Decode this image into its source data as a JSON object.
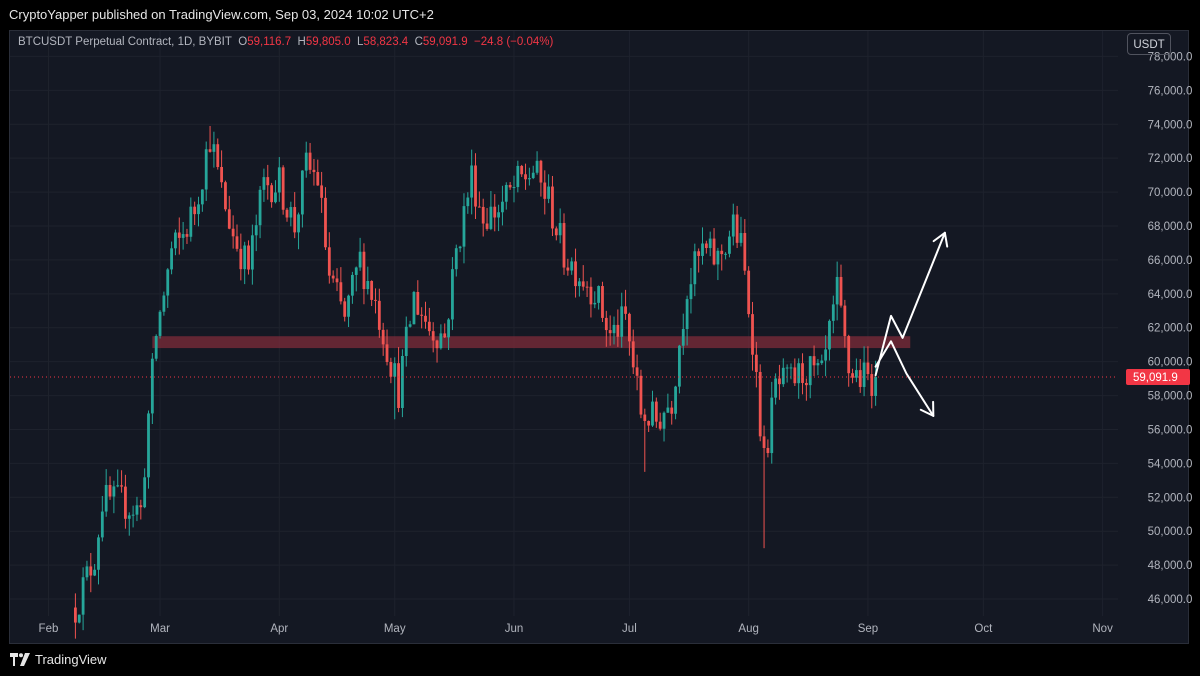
{
  "header": {
    "publisher_line": "CryptoYapper published on TradingView.com, Sep 03, 2024 10:02 UTC+2"
  },
  "legend": {
    "symbol": "BTCUSDT Perpetual Contract, 1D, BYBIT",
    "open_label": "O",
    "open": "59,116.7",
    "high_label": "H",
    "high": "59,805.0",
    "low_label": "L",
    "low": "58,823.4",
    "close_label": "C",
    "close": "59,091.9",
    "change": "−24.8 (−0.04%)"
  },
  "currency_button": "USDT",
  "footer": {
    "brand": "TradingView"
  },
  "colors": {
    "up": "#26a69a",
    "down": "#ef5350",
    "zone": "#7d2b3a",
    "price_label": "#f23645",
    "background": "#141823"
  },
  "chart_data": {
    "type": "candlestick",
    "symbol": "BTCUSDT",
    "interval": "1D",
    "ylim": [
      45000,
      79500
    ],
    "y_ticks": [
      46000,
      48000,
      50000,
      52000,
      54000,
      56000,
      58000,
      60000,
      62000,
      64000,
      66000,
      68000,
      70000,
      72000,
      74000,
      76000,
      78000
    ],
    "y_tick_labels": [
      "46,000.0",
      "48,000.0",
      "50,000.0",
      "52,000.0",
      "54,000.0",
      "56,000.0",
      "58,000.0",
      "60,000.0",
      "62,000.0",
      "64,000.0",
      "66,000.0",
      "68,000.0",
      "70,000.0",
      "72,000.0",
      "74,000.0",
      "76,000.0",
      "78,000.0"
    ],
    "x_range": [
      "2024-01-22",
      "2024-11-05"
    ],
    "x_ticks": [
      {
        "date": "2024-02-01",
        "label": "Feb"
      },
      {
        "date": "2024-03-01",
        "label": "Mar"
      },
      {
        "date": "2024-04-01",
        "label": "Apr"
      },
      {
        "date": "2024-05-01",
        "label": "May"
      },
      {
        "date": "2024-06-01",
        "label": "Jun"
      },
      {
        "date": "2024-07-01",
        "label": "Jul"
      },
      {
        "date": "2024-08-01",
        "label": "Aug"
      },
      {
        "date": "2024-09-01",
        "label": "Sep"
      },
      {
        "date": "2024-10-01",
        "label": "Oct"
      },
      {
        "date": "2024-11-01",
        "label": "Nov"
      }
    ],
    "start_date": "2024-02-08",
    "close_path": [
      [
        "2024-02-08",
        45500
      ],
      [
        "2024-02-13",
        48500
      ],
      [
        "2024-02-15",
        51800
      ],
      [
        "2024-02-20",
        51700
      ],
      [
        "2024-02-25",
        51200
      ],
      [
        "2024-02-27",
        56800
      ],
      [
        "2024-02-29",
        61600
      ],
      [
        "2024-03-04",
        66500
      ],
      [
        "2024-03-06",
        67000
      ],
      [
        "2024-03-10",
        69000
      ],
      [
        "2024-03-14",
        73300
      ],
      [
        "2024-03-17",
        70000
      ],
      [
        "2024-03-20",
        67500
      ],
      [
        "2024-03-24",
        65500
      ],
      [
        "2024-03-28",
        70500
      ],
      [
        "2024-04-01",
        70500
      ],
      [
        "2024-04-05",
        68000
      ],
      [
        "2024-04-08",
        71500
      ],
      [
        "2024-04-11",
        70800
      ],
      [
        "2024-04-14",
        65000
      ],
      [
        "2024-04-18",
        62500
      ],
      [
        "2024-04-22",
        66000
      ],
      [
        "2024-04-26",
        63500
      ],
      [
        "2024-04-30",
        60000
      ],
      [
        "2024-05-02",
        58300
      ],
      [
        "2024-05-06",
        63800
      ],
      [
        "2024-05-10",
        62000
      ],
      [
        "2024-05-14",
        61500
      ],
      [
        "2024-05-17",
        66500
      ],
      [
        "2024-05-21",
        71000
      ],
      [
        "2024-05-24",
        68500
      ],
      [
        "2024-05-28",
        69000
      ],
      [
        "2024-06-02",
        70500
      ],
      [
        "2024-06-06",
        71300
      ],
      [
        "2024-06-10",
        69500
      ],
      [
        "2024-06-14",
        66300
      ],
      [
        "2024-06-18",
        65200
      ],
      [
        "2024-06-22",
        64200
      ],
      [
        "2024-06-26",
        61500
      ],
      [
        "2024-06-30",
        62500
      ],
      [
        "2024-07-04",
        57000
      ],
      [
        "2024-07-08",
        56500
      ],
      [
        "2024-07-12",
        57800
      ],
      [
        "2024-07-16",
        64500
      ],
      [
        "2024-07-20",
        66500
      ],
      [
        "2024-07-24",
        66000
      ],
      [
        "2024-07-28",
        68000
      ],
      [
        "2024-07-30",
        66800
      ],
      [
        "2024-08-02",
        61500
      ],
      [
        "2024-08-05",
        54000
      ],
      [
        "2024-08-08",
        58500
      ],
      [
        "2024-08-12",
        58800
      ],
      [
        "2024-08-16",
        59500
      ],
      [
        "2024-08-20",
        59000
      ],
      [
        "2024-08-24",
        64000
      ],
      [
        "2024-08-27",
        59500
      ],
      [
        "2024-08-31",
        59000
      ],
      [
        "2024-09-03",
        59091.9
      ]
    ],
    "wick_extremes": [
      {
        "date": "2024-03-14",
        "high": 73900
      },
      {
        "date": "2024-08-05",
        "low": 49000
      },
      {
        "date": "2024-07-05",
        "low": 53500
      },
      {
        "date": "2024-05-01",
        "low": 56600
      }
    ],
    "support_zone": {
      "from": "2024-02-28",
      "to": "2024-09-12",
      "low": 60800,
      "high": 61500
    },
    "last_price": 59091.9,
    "last_price_label": "59,091.9",
    "annotations": [
      {
        "type": "hand-drawn-arrow",
        "direction": "up",
        "path": [
          [
            "2024-09-03",
            59200
          ],
          [
            "2024-09-07",
            62700
          ],
          [
            "2024-09-10",
            61400
          ],
          [
            "2024-09-21",
            67600
          ]
        ]
      },
      {
        "type": "hand-drawn-arrow",
        "direction": "down",
        "path": [
          [
            "2024-09-03",
            59700
          ],
          [
            "2024-09-07",
            61200
          ],
          [
            "2024-09-11",
            59300
          ],
          [
            "2024-09-18",
            56800
          ]
        ]
      }
    ]
  }
}
